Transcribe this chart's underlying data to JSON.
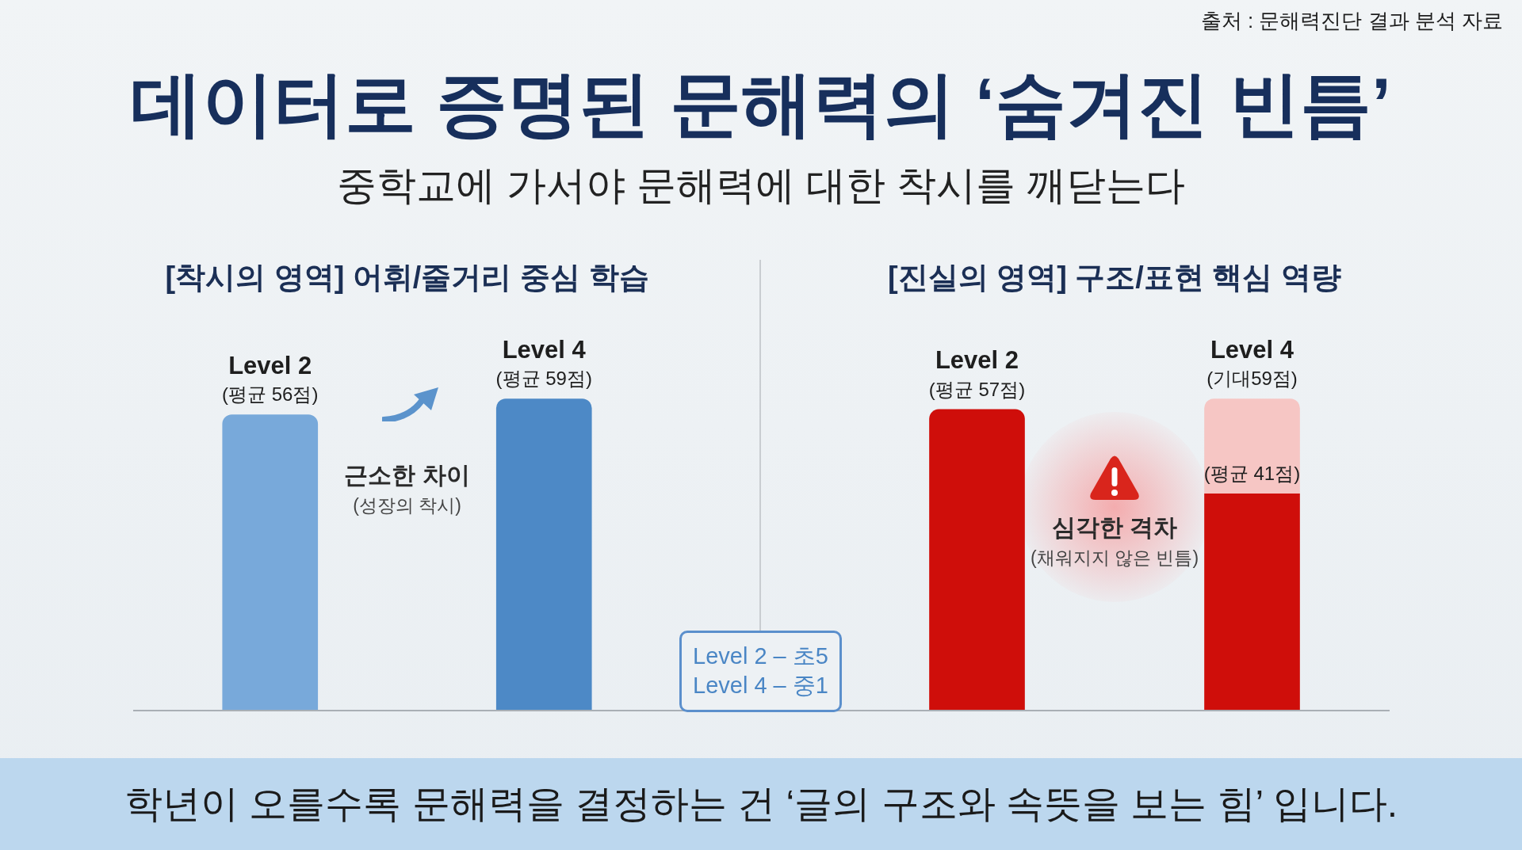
{
  "chart_data": [
    {
      "type": "other",
      "title": "데이터로 증명된 문해력의 ‘숨겨진 빈틈’",
      "subtitle": "중학교에 가서야 문해력에 대한 착시를 깨닫는다",
      "annotations": [
        "출처 : 문해력진단 결과 분석 자료"
      ]
    },
    {
      "type": "bar",
      "title": "[착시의 영역] 어휘/줄거리 중심 학습",
      "categories": [
        "Level 2",
        "Level 4"
      ],
      "values": [
        56,
        59
      ],
      "colors": [
        "#78a9da",
        "#4d89c6"
      ],
      "value_labels": [
        "(평균 56점)",
        "(평균 59점)"
      ],
      "annotations": [
        "근소한 차이",
        "(성장의 착시)",
        "Level 2 – 초5",
        "Level 4 – 중1"
      ]
    },
    {
      "type": "bar",
      "title": "[진실의 영역] 구조/표현 핵심 역량",
      "categories": [
        "Level 2",
        "Level 4"
      ],
      "stacked": true,
      "series": [
        {
          "color": "#cf0e0a",
          "values": [
            57,
            41
          ],
          "value_labels": [
            "(평균 57점)",
            "(평균 41점)"
          ]
        },
        {
          "color": "#f6c6c4",
          "values": [
            null,
            18
          ]
        }
      ],
      "totals": [
        null,
        "(기대59점)"
      ],
      "annotations": [
        "심각한 격차",
        "(채워지지 않은 빈틈)"
      ]
    },
    {
      "type": "other",
      "annotations": [
        "학년이 오를수록 문해력을 결정하는 건 ‘글의 구조와 속뜻을 보는 힘’ 입니다."
      ]
    }
  ]
}
